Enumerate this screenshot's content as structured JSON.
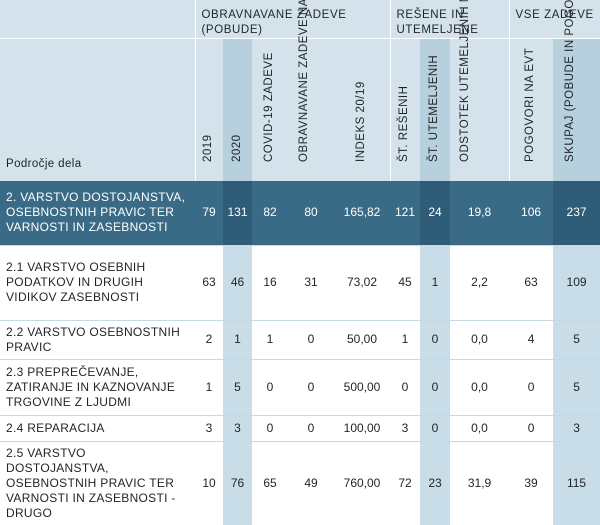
{
  "header": {
    "groups": {
      "obravnavane": "OBRAVNAVANE ZADEVE (POBUDE)",
      "resene": "REŠENE IN UTEMELJENE",
      "vse": "VSE ZADEVE"
    },
    "area_label": "Področje dela",
    "columns": [
      "2019",
      "2020",
      "COVID-19 ZADEVE",
      "OBRAVNAVANE ZADEVE NA EVT",
      "INDEKS 20/19",
      "ŠT. REŠENIH",
      "ŠT. UTEMELJENIH",
      "ODSTOTEK UTEMELJENIH MED REŠENIMI",
      "POGOVORI NA EVT",
      "SKUPAJ (POBUDE IN POGOVORI)"
    ]
  },
  "rows": [
    {
      "area": "2. VARSTVO DOSTOJANSTVA, OSEBNOSTNIH PRAVIC TER VARNOSTI IN ZASEBNOSTI",
      "values": [
        "79",
        "131",
        "82",
        "80",
        "165,82",
        "121",
        "24",
        "19,8",
        "106",
        "237"
      ]
    },
    {
      "area": "2.1 VARSTVO OSEBNIH PODATKOV IN DRUGIH VIDIKOV ZASEBNOSTI",
      "values": [
        "63",
        "46",
        "16",
        "31",
        "73,02",
        "45",
        "1",
        "2,2",
        "63",
        "109"
      ]
    },
    {
      "area": "2.2 VARSTVO OSEBNOSTNIH PRAVIC",
      "values": [
        "2",
        "1",
        "1",
        "0",
        "50,00",
        "1",
        "0",
        "0,0",
        "4",
        "5"
      ]
    },
    {
      "area": "2.3 PREPREČEVANJE, ZATIRANJE IN KAZNOVANJE TRGOVINE Z LJUDMI",
      "values": [
        "1",
        "5",
        "0",
        "0",
        "500,00",
        "0",
        "0",
        "0,0",
        "0",
        "5"
      ]
    },
    {
      "area": "2.4 REPARACIJA",
      "values": [
        "3",
        "3",
        "0",
        "0",
        "100,00",
        "3",
        "0",
        "0,0",
        "0",
        "3"
      ]
    },
    {
      "area": "2.5 VARSTVO DOSTOJANSTVA, OSEBNOSTNIH PRAVIC TER VARNOSTI IN ZASEBNOSTI - DRUGO",
      "values": [
        "10",
        "76",
        "65",
        "49",
        "760,00",
        "72",
        "23",
        "31,9",
        "39",
        "115"
      ]
    }
  ]
}
